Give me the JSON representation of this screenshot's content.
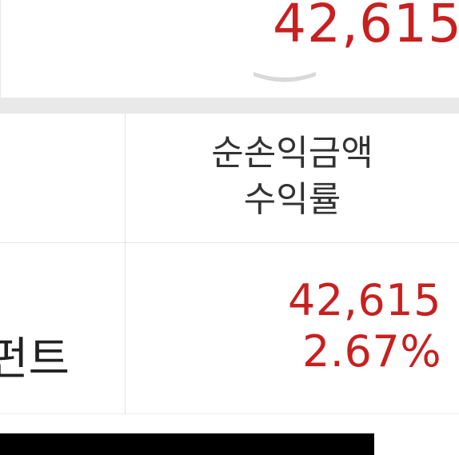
{
  "summary": {
    "amount": "42,615"
  },
  "table": {
    "header": {
      "line1": "순손익금액",
      "line2": "수익률"
    },
    "rows": [
      {
        "label": "펀트",
        "net_profit": "42,615",
        "return_rate": "2.67%"
      }
    ]
  },
  "colors": {
    "profit_red": "#c8201f",
    "divider_gray": "#e9e9e9",
    "text_dark": "#333333"
  },
  "icons": {
    "expand": "chevron-down-icon"
  }
}
